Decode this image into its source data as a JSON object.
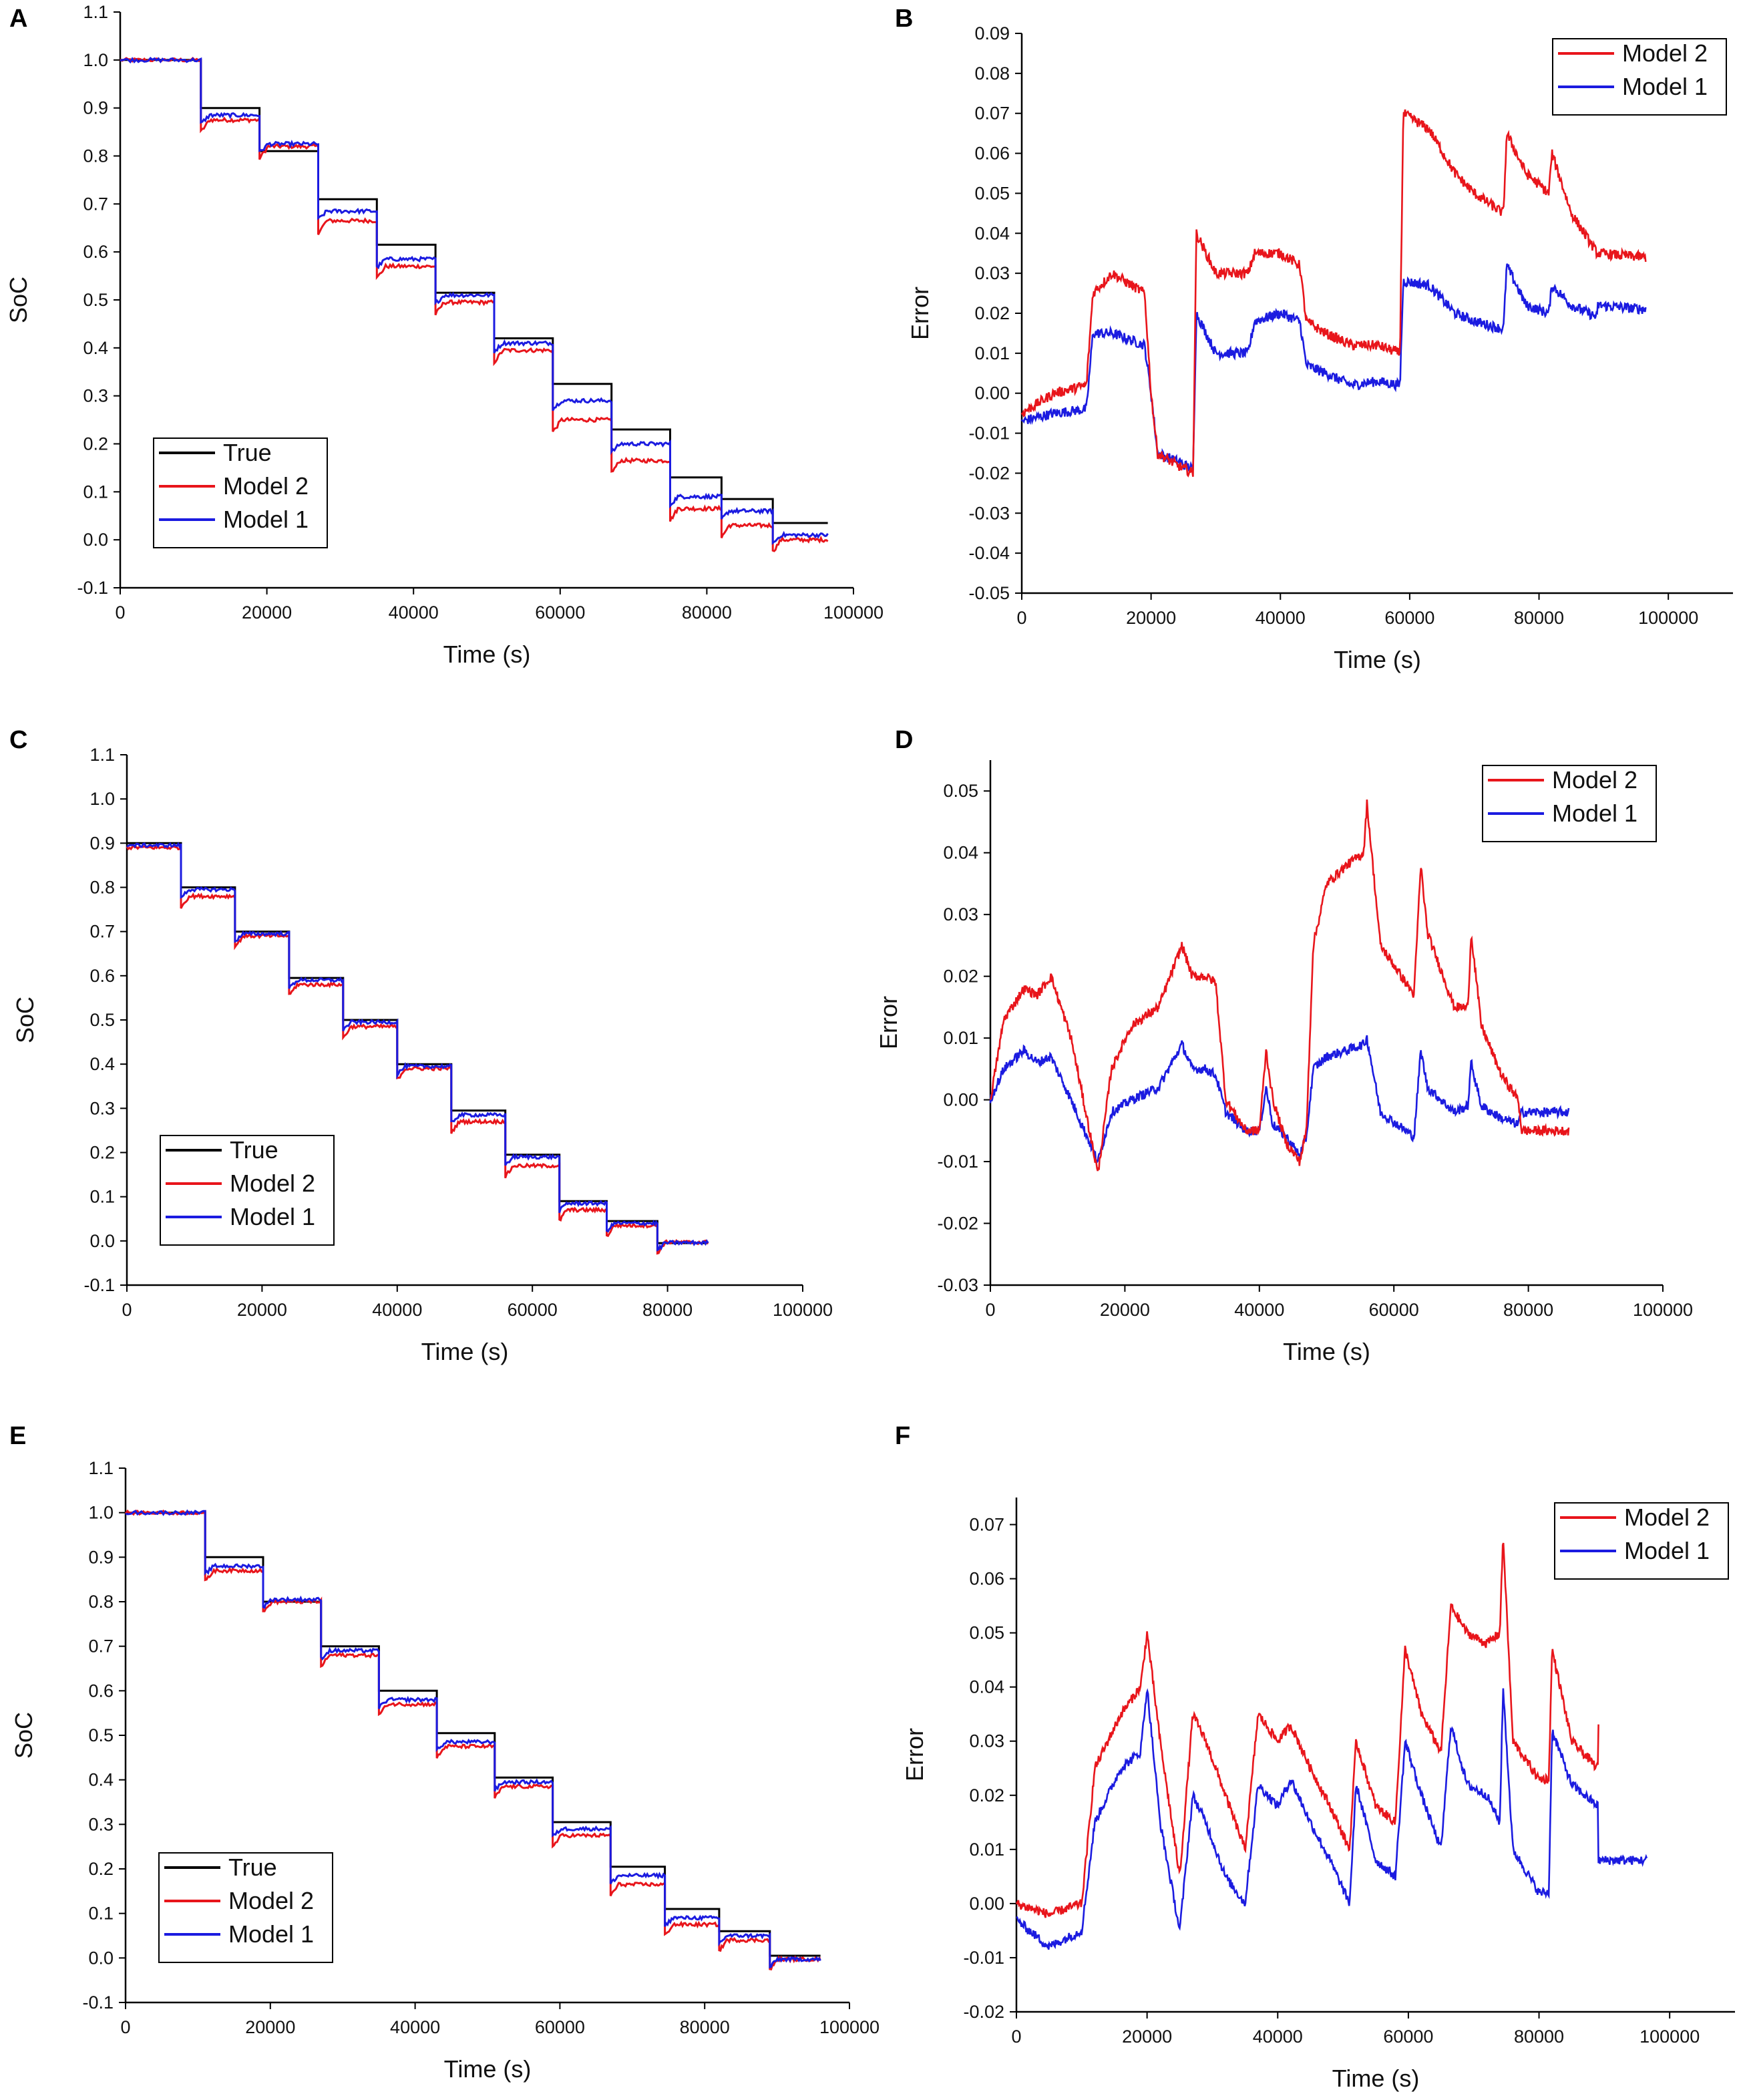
{
  "figure": {
    "colors": {
      "True": "#000000",
      "Model 2": "#e8151b",
      "Model 1": "#1b1be0"
    },
    "legend_labels": {
      "true": "True",
      "model2": "Model 2",
      "model1": "Model 1"
    }
  },
  "chart_data": [
    {
      "panel": "A",
      "type": "line",
      "xlabel": "Time (s)",
      "ylabel": "SoC",
      "xlim": [
        0,
        100000
      ],
      "ylim": [
        -0.1,
        1.1
      ],
      "xticks": [
        0,
        20000,
        40000,
        60000,
        80000,
        100000
      ],
      "xtick_labels": [
        "0",
        "20000",
        "40000",
        "60000",
        "80000",
        "100000"
      ],
      "yticks": [
        -0.1,
        0,
        0.1,
        0.2,
        0.3,
        0.4,
        0.5,
        0.6,
        0.7,
        0.8,
        0.9,
        1.0,
        1.1
      ],
      "ytick_labels": [
        "-0.1",
        "0.0",
        "0.1",
        "0.2",
        "0.3",
        "0.4",
        "0.5",
        "0.6",
        "0.7",
        "0.8",
        "0.9",
        "1.0",
        "1.1"
      ],
      "legend": [
        "True",
        "Model 2",
        "Model 1"
      ],
      "legend_position": "bottom-left",
      "steps": {
        "t": [
          0,
          11000,
          19000,
          27000,
          35000,
          43000,
          51000,
          59000,
          67000,
          75000,
          82000,
          89000,
          96500
        ],
        "true": [
          1.0,
          0.9,
          0.81,
          0.71,
          0.615,
          0.515,
          0.42,
          0.325,
          0.23,
          0.13,
          0.085,
          0.035
        ],
        "model2": [
          1.0,
          0.875,
          0.82,
          0.665,
          0.57,
          0.495,
          0.395,
          0.25,
          0.165,
          0.065,
          0.03,
          0.0
        ],
        "model1": [
          1.0,
          0.885,
          0.825,
          0.685,
          0.585,
          0.51,
          0.41,
          0.29,
          0.2,
          0.09,
          0.06,
          0.01
        ]
      }
    },
    {
      "panel": "B",
      "type": "line",
      "xlabel": "Time (s)",
      "ylabel": "Error",
      "xlim": [
        0,
        110000
      ],
      "ylim": [
        -0.05,
        0.09
      ],
      "xticks": [
        0,
        20000,
        40000,
        60000,
        80000,
        100000
      ],
      "xtick_labels": [
        "0",
        "20000",
        "40000",
        "60000",
        "80000",
        "100000"
      ],
      "yticks": [
        -0.05,
        -0.04,
        -0.03,
        -0.02,
        -0.01,
        0.0,
        0.01,
        0.02,
        0.03,
        0.04,
        0.05,
        0.06,
        0.07,
        0.08,
        0.09
      ],
      "ytick_labels": [
        "-0.05",
        "-0.04",
        "-0.03",
        "-0.02",
        "-0.01",
        "0.00",
        "0.01",
        "0.02",
        "0.03",
        "0.04",
        "0.05",
        "0.06",
        "0.07",
        "0.08",
        "0.09"
      ],
      "legend": [
        "Model 2",
        "Model 1"
      ],
      "legend_position": "top-right",
      "series": [
        {
          "name": "Model 2",
          "x": [
            0,
            5000,
            10000,
            11000,
            14000,
            19000,
            20000,
            21000,
            24000,
            26500,
            27000,
            30000,
            35000,
            36000,
            40000,
            43000,
            44000,
            47000,
            51000,
            55000,
            58500,
            59000,
            63000,
            67000,
            70000,
            74500,
            75000,
            78000,
            81500,
            82000,
            85000,
            89000,
            89100,
            96500
          ],
          "y": [
            -0.005,
            0.0,
            0.002,
            0.025,
            0.03,
            0.025,
            0.0,
            -0.015,
            -0.018,
            -0.02,
            0.04,
            0.03,
            0.03,
            0.035,
            0.035,
            0.032,
            0.018,
            0.015,
            0.012,
            0.012,
            0.01,
            0.07,
            0.066,
            0.055,
            0.05,
            0.045,
            0.065,
            0.055,
            0.05,
            0.06,
            0.045,
            0.035,
            0.035,
            0.034
          ]
        },
        {
          "name": "Model 1",
          "x": [
            0,
            5000,
            10000,
            11000,
            14000,
            19000,
            20000,
            21000,
            24000,
            26500,
            27000,
            30000,
            35000,
            36000,
            40000,
            43000,
            44000,
            47000,
            51000,
            55000,
            58500,
            59000,
            63000,
            67000,
            70000,
            74500,
            75000,
            78000,
            81500,
            82000,
            85000,
            89000,
            89100,
            96500
          ],
          "y": [
            -0.007,
            -0.005,
            -0.004,
            0.015,
            0.015,
            0.012,
            0.0,
            -0.015,
            -0.017,
            -0.019,
            0.02,
            0.01,
            0.01,
            0.018,
            0.02,
            0.018,
            0.007,
            0.005,
            0.002,
            0.003,
            0.002,
            0.028,
            0.027,
            0.02,
            0.018,
            0.016,
            0.032,
            0.022,
            0.02,
            0.027,
            0.022,
            0.019,
            0.022,
            0.021
          ]
        }
      ]
    },
    {
      "panel": "C",
      "type": "line",
      "xlabel": "Time (s)",
      "ylabel": "SoC",
      "xlim": [
        0,
        100000
      ],
      "ylim": [
        -0.1,
        1.1
      ],
      "xticks": [
        0,
        20000,
        40000,
        60000,
        80000,
        100000
      ],
      "xtick_labels": [
        "0",
        "20000",
        "40000",
        "60000",
        "80000",
        "100000"
      ],
      "yticks": [
        -0.1,
        0,
        0.1,
        0.2,
        0.3,
        0.4,
        0.5,
        0.6,
        0.7,
        0.8,
        0.9,
        1.0,
        1.1
      ],
      "ytick_labels": [
        "-0.1",
        "0.0",
        "0.1",
        "0.2",
        "0.3",
        "0.4",
        "0.5",
        "0.6",
        "0.7",
        "0.8",
        "0.9",
        "1.0",
        "1.1"
      ],
      "legend": [
        "True",
        "Model 2",
        "Model 1"
      ],
      "legend_position": "bottom-left",
      "steps": {
        "t": [
          0,
          8000,
          16000,
          24000,
          32000,
          40000,
          48000,
          56000,
          64000,
          71000,
          78500,
          86000
        ],
        "true": [
          0.9,
          0.8,
          0.7,
          0.595,
          0.5,
          0.4,
          0.295,
          0.195,
          0.09,
          0.045,
          -0.005
        ],
        "model2": [
          0.89,
          0.78,
          0.69,
          0.58,
          0.485,
          0.39,
          0.27,
          0.17,
          0.07,
          0.035,
          -0.003
        ],
        "model1": [
          0.895,
          0.795,
          0.695,
          0.59,
          0.495,
          0.395,
          0.285,
          0.19,
          0.085,
          0.04,
          -0.004
        ]
      }
    },
    {
      "panel": "D",
      "type": "line",
      "xlabel": "Time (s)",
      "ylabel": "Error",
      "xlim": [
        0,
        100000
      ],
      "ylim": [
        -0.03,
        0.055
      ],
      "xticks": [
        0,
        20000,
        40000,
        60000,
        80000,
        100000
      ],
      "xtick_labels": [
        "0",
        "20000",
        "40000",
        "60000",
        "80000",
        "100000"
      ],
      "yticks": [
        -0.03,
        -0.02,
        -0.01,
        0.0,
        0.01,
        0.02,
        0.03,
        0.04,
        0.05
      ],
      "ytick_labels": [
        "-0.03",
        "-0.02",
        "-0.01",
        "0.00",
        "0.01",
        "0.02",
        "0.03",
        "0.04",
        "0.05"
      ],
      "legend": [
        "Model 2",
        "Model 1"
      ],
      "legend_position": "top-right",
      "series": [
        {
          "name": "Model 2",
          "x": [
            0,
            2000,
            5000,
            7000,
            9000,
            12000,
            16000,
            18000,
            21000,
            25000,
            28500,
            30000,
            32000,
            33500,
            35000,
            38000,
            40000,
            41000,
            42000,
            44000,
            46000,
            47000,
            48000,
            50000,
            53000,
            55500,
            56000,
            58000,
            63000,
            64000,
            65000,
            69000,
            71000,
            71500,
            73000,
            76000,
            78500,
            79000,
            86000
          ],
          "y": [
            0.0,
            0.013,
            0.018,
            0.017,
            0.02,
            0.01,
            -0.012,
            0.005,
            0.012,
            0.015,
            0.025,
            0.02,
            0.02,
            0.019,
            0.0,
            -0.005,
            -0.005,
            0.008,
            0.0,
            -0.007,
            -0.01,
            -0.005,
            0.025,
            0.035,
            0.038,
            0.04,
            0.048,
            0.025,
            0.017,
            0.038,
            0.027,
            0.015,
            0.015,
            0.027,
            0.012,
            0.004,
            0.0,
            -0.005,
            -0.005
          ]
        },
        {
          "name": "Model 1",
          "x": [
            0,
            2000,
            5000,
            7000,
            9000,
            12000,
            16000,
            18000,
            21000,
            25000,
            28500,
            30000,
            32000,
            33500,
            35000,
            38000,
            40000,
            41000,
            42000,
            44000,
            46000,
            47000,
            48000,
            50000,
            53000,
            55500,
            56000,
            58000,
            63000,
            64000,
            65000,
            69000,
            71000,
            71500,
            73000,
            76000,
            78500,
            79000,
            86000
          ],
          "y": [
            0.0,
            0.005,
            0.008,
            0.006,
            0.007,
            0.0,
            -0.01,
            -0.002,
            0.0,
            0.002,
            0.009,
            0.005,
            0.005,
            0.004,
            -0.002,
            -0.005,
            -0.005,
            0.002,
            -0.004,
            -0.006,
            -0.009,
            -0.006,
            0.005,
            0.007,
            0.008,
            0.009,
            0.01,
            -0.002,
            -0.006,
            0.008,
            0.002,
            -0.002,
            -0.001,
            0.006,
            -0.001,
            -0.003,
            -0.004,
            -0.002,
            -0.002
          ]
        }
      ]
    },
    {
      "panel": "E",
      "type": "line",
      "xlabel": "Time (s)",
      "ylabel": "SoC",
      "xlim": [
        0,
        100000
      ],
      "ylim": [
        -0.1,
        1.1
      ],
      "xticks": [
        0,
        20000,
        40000,
        60000,
        80000,
        100000
      ],
      "xtick_labels": [
        "0",
        "20000",
        "40000",
        "60000",
        "80000",
        "100000"
      ],
      "yticks": [
        -0.1,
        0,
        0.1,
        0.2,
        0.3,
        0.4,
        0.5,
        0.6,
        0.7,
        0.8,
        0.9,
        1.0,
        1.1
      ],
      "ytick_labels": [
        "-0.1",
        "0.0",
        "0.1",
        "0.2",
        "0.3",
        "0.4",
        "0.5",
        "0.6",
        "0.7",
        "0.8",
        "0.9",
        "1.0",
        "1.1"
      ],
      "legend": [
        "True",
        "Model 2",
        "Model 1"
      ],
      "legend_position": "bottom-left",
      "steps": {
        "t": [
          0,
          11000,
          19000,
          27000,
          35000,
          43000,
          51000,
          59000,
          67000,
          74500,
          82000,
          89000,
          96000
        ],
        "true": [
          1.0,
          0.9,
          0.8,
          0.7,
          0.6,
          0.505,
          0.405,
          0.305,
          0.205,
          0.11,
          0.06,
          0.005
        ],
        "model2": [
          1.0,
          0.87,
          0.8,
          0.68,
          0.57,
          0.475,
          0.385,
          0.275,
          0.165,
          0.075,
          0.04,
          -0.003
        ],
        "model1": [
          1.0,
          0.88,
          0.805,
          0.69,
          0.58,
          0.485,
          0.395,
          0.29,
          0.185,
          0.09,
          0.05,
          -0.003
        ]
      }
    },
    {
      "panel": "F",
      "type": "line",
      "xlabel": "Time (s)",
      "ylabel": "Error",
      "xlim": [
        0,
        110000
      ],
      "ylim": [
        -0.02,
        0.075
      ],
      "xticks": [
        0,
        20000,
        40000,
        60000,
        80000,
        100000
      ],
      "xtick_labels": [
        "0",
        "20000",
        "40000",
        "60000",
        "80000",
        "100000"
      ],
      "yticks": [
        -0.02,
        -0.01,
        0.0,
        0.01,
        0.02,
        0.03,
        0.04,
        0.05,
        0.06,
        0.07
      ],
      "ytick_labels": [
        "-0.02",
        "-0.01",
        "0.00",
        "0.01",
        "0.02",
        "0.03",
        "0.04",
        "0.05",
        "0.06",
        "0.07"
      ],
      "legend": [
        "Model 2",
        "Model 1"
      ],
      "legend_position": "top-right",
      "series": [
        {
          "name": "Model 2",
          "x": [
            0,
            5000,
            10000,
            12000,
            16000,
            19000,
            20000,
            22000,
            25000,
            27000,
            29000,
            32000,
            35000,
            37000,
            40000,
            42000,
            45000,
            48000,
            51000,
            52000,
            55000,
            58000,
            59500,
            62000,
            65000,
            66500,
            69000,
            72000,
            74000,
            74500,
            76000,
            80000,
            81500,
            82000,
            85000,
            89000,
            89100
          ],
          "y": [
            0.0,
            -0.002,
            0.0,
            0.025,
            0.035,
            0.04,
            0.05,
            0.03,
            0.005,
            0.035,
            0.03,
            0.02,
            0.01,
            0.035,
            0.03,
            0.033,
            0.025,
            0.018,
            0.01,
            0.03,
            0.018,
            0.015,
            0.047,
            0.035,
            0.028,
            0.055,
            0.05,
            0.048,
            0.05,
            0.068,
            0.03,
            0.023,
            0.023,
            0.047,
            0.03,
            0.025,
            0.033
          ]
        },
        {
          "name": "Model 1",
          "x": [
            0,
            5000,
            10000,
            12000,
            16000,
            19000,
            20000,
            22000,
            25000,
            27000,
            29000,
            32000,
            35000,
            37000,
            40000,
            42000,
            45000,
            48000,
            51000,
            52000,
            55000,
            58000,
            59500,
            62000,
            65000,
            66500,
            69000,
            72000,
            74000,
            74500,
            76000,
            80000,
            81500,
            82000,
            85000,
            89000,
            89100,
            96500
          ],
          "y": [
            -0.003,
            -0.008,
            -0.005,
            0.015,
            0.025,
            0.028,
            0.04,
            0.015,
            -0.005,
            0.02,
            0.015,
            0.005,
            0.0,
            0.022,
            0.018,
            0.023,
            0.015,
            0.008,
            0.0,
            0.022,
            0.008,
            0.005,
            0.03,
            0.02,
            0.01,
            0.033,
            0.022,
            0.02,
            0.015,
            0.04,
            0.01,
            0.002,
            0.002,
            0.032,
            0.022,
            0.018,
            0.008,
            0.008
          ]
        }
      ]
    }
  ]
}
